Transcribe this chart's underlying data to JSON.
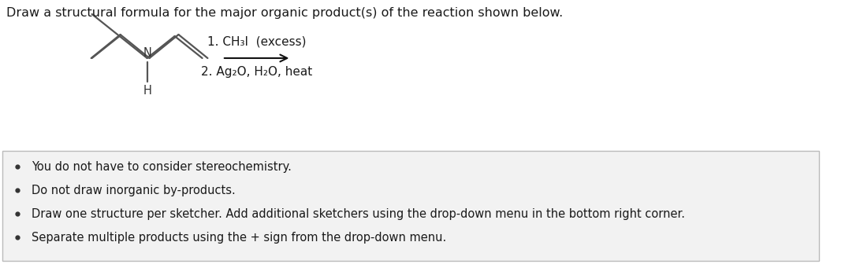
{
  "title": "Draw a structural formula for the major organic product(s) of the reaction shown below.",
  "background_color": "#ffffff",
  "box_background": "#f2f2f2",
  "box_border": "#bbbbbb",
  "reagent_line1": "1. CH₃I  (excess)",
  "reagent_line2": "2. Ag₂O, H₂O, heat",
  "bullet_points": [
    "You do not have to consider stereochemistry.",
    "Do not draw inorganic by-products.",
    "Draw one structure per sketcher. Add additional sketchers using the drop-down menu in the bottom right corner.",
    "Separate multiple products using the + sign from the drop-down menu."
  ],
  "text_color": "#1a1a1a",
  "font_size_title": 11.5,
  "font_size_reagent": 11.0,
  "font_size_bullet": 10.5,
  "mol_lw": 1.6,
  "mol_color": "#555555"
}
